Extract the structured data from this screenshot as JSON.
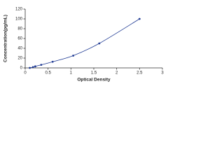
{
  "chart_data": {
    "type": "scatter",
    "xlabel": "Optical Density",
    "ylabel": "Concentration(pg/mL)",
    "x": [
      0.1,
      0.17,
      0.22,
      0.35,
      0.6,
      1.05,
      1.62,
      2.5
    ],
    "y": [
      0,
      1.56,
      3.12,
      6.25,
      12.5,
      25,
      50,
      100
    ],
    "color": "#1f3a93",
    "curve": true,
    "xlim": [
      0,
      3
    ],
    "xticks": [
      0,
      0.5,
      1,
      1.5,
      2,
      2.5,
      3
    ],
    "ylim": [
      0,
      120
    ],
    "yticks": [
      0,
      20,
      40,
      60,
      80,
      100,
      120
    ]
  }
}
